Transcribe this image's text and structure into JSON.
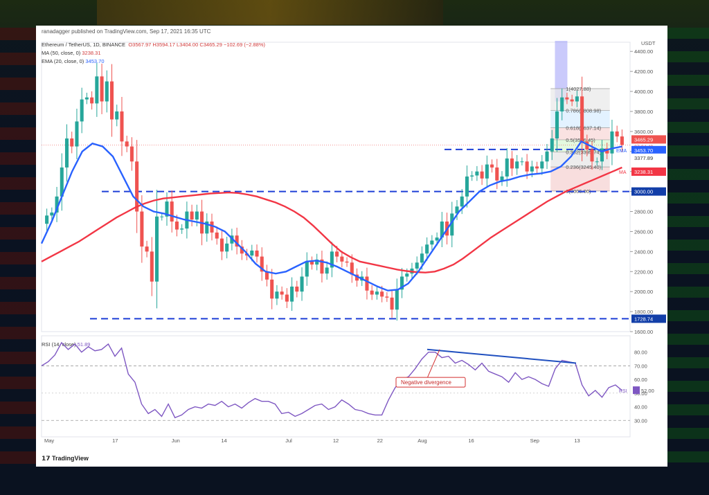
{
  "caption": "ranadagger published on TradingView.com, Sep 17, 2021 16:35 UTC",
  "legend": {
    "symbol": "Ethereum / TetherUS, 1D, BINANCE",
    "ohlc": "O3567.97  H3594.17  L3404.00  C3465.29  −102.69 (−2.88%)",
    "ma_label": "MA (50, close, 0)",
    "ma_value": "3238.31",
    "ema_label": "EMA (20, close, 0)",
    "ema_value": "3453.70"
  },
  "rsi_legend": {
    "label": "RSI (14, close)",
    "value": "51.89"
  },
  "tradingview": "TradingView",
  "colors": {
    "up": "#26a69a",
    "down": "#ef5350",
    "ema": "#2962ff",
    "ma": "#f23645",
    "rsi": "#7e57c2",
    "level": "#1e3fd6"
  },
  "chart_data": [
    {
      "type": "candlestick",
      "axis_unit": "USDT",
      "x_ticks": [
        "May",
        "17",
        "Jun",
        "14",
        "Jul",
        "12",
        "22",
        "Aug",
        "16",
        "Sep",
        "13"
      ],
      "y_ticks": [
        1600,
        1800,
        2000,
        2200,
        2400,
        2600,
        2800,
        3000,
        3200,
        3400,
        3600,
        3800,
        4000,
        4200,
        4400
      ],
      "ylim": [
        1600,
        4450
      ],
      "price_labels": {
        "last": "3465.29",
        "countdown": "07:24:49",
        "ema": "3453.70",
        "ema_tag": "EMA",
        "mid": "3377.89",
        "ma": "3238.31",
        "ma_tag": "MA",
        "level_3000": "3000.00",
        "level_1728": "1728.74"
      },
      "levels": [
        3000,
        1728.74,
        3420
      ],
      "fib_levels": [
        {
          "label": "1(4027.88)",
          "value": 4027.88
        },
        {
          "label": "0.786(3808.98)",
          "value": 3808.98
        },
        {
          "label": "0.618(3637.14)",
          "value": 3637.14
        },
        {
          "label": "0.5(3516.45)",
          "value": 3516.45
        },
        {
          "label": "0.382(3395.74)",
          "value": 3395.74
        },
        {
          "label": "0.236(3245.40)",
          "value": 3245.4
        },
        {
          "label": "0(3005.00)",
          "value": 3005.0
        }
      ],
      "closes": [
        2760,
        2790,
        2950,
        3240,
        3530,
        3450,
        3700,
        3920,
        3940,
        3880,
        4150,
        3900,
        4100,
        3720,
        3800,
        3500,
        3450,
        3300,
        2800,
        2450,
        2400,
        2100,
        2750,
        2750,
        2900,
        2700,
        2620,
        2630,
        2800,
        2720,
        2800,
        2580,
        2700,
        2590,
        2530,
        2400,
        2480,
        2560,
        2450,
        2380,
        2360,
        2410,
        2350,
        2200,
        2120,
        1930,
        2000,
        1970,
        1900,
        2050,
        2000,
        2150,
        2300,
        2270,
        2320,
        2180,
        2240,
        2400,
        2350,
        2300,
        2290,
        2170,
        2110,
        2150,
        2010,
        1970,
        2000,
        1950,
        1940,
        1820,
        2020,
        2150,
        2180,
        2230,
        2290,
        2380,
        2470,
        2510,
        2540,
        2700,
        2560,
        2780,
        2850,
        2950,
        3150,
        3160,
        3200,
        3130,
        3270,
        3240,
        3110,
        3150,
        3330,
        3230,
        3300,
        3300,
        3200,
        3250,
        3230,
        3300,
        3400,
        3530,
        3800,
        3940,
        3920,
        3900,
        3950,
        3500,
        3420,
        3300,
        3300,
        3430,
        3380,
        3600,
        3550,
        3465
      ],
      "ma50": [
        2300,
        2350,
        2400,
        2450,
        2500,
        2560,
        2620,
        2680,
        2740,
        2790,
        2840,
        2880,
        2910,
        2930,
        2940,
        2950,
        2960,
        2970,
        2980,
        2985,
        2990,
        2985,
        2970,
        2950,
        2920,
        2890,
        2850,
        2800,
        2740,
        2660,
        2570,
        2480,
        2400,
        2345,
        2300,
        2280,
        2260,
        2240,
        2220,
        2205,
        2195,
        2190,
        2200,
        2230,
        2270,
        2330,
        2400,
        2470,
        2540,
        2600,
        2660,
        2720,
        2780,
        2840,
        2900,
        2950,
        3000,
        3040,
        3080,
        3120,
        3160,
        3200,
        3240
      ],
      "ema20": [
        2480,
        2700,
        2950,
        3200,
        3400,
        3480,
        3450,
        3350,
        3150,
        2950,
        2850,
        2800,
        2780,
        2750,
        2720,
        2700,
        2680,
        2650,
        2600,
        2500,
        2400,
        2280,
        2200,
        2180,
        2200,
        2250,
        2300,
        2310,
        2290,
        2250,
        2200,
        2150,
        2100,
        2050,
        2010,
        2020,
        2080,
        2200,
        2350,
        2500,
        2650,
        2800,
        2900,
        3000,
        3060,
        3100,
        3120,
        3150,
        3170,
        3180,
        3200,
        3250,
        3350,
        3500,
        3450,
        3400,
        3430,
        3450
      ],
      "rsi": [
        70,
        73,
        78,
        87,
        82,
        86,
        80,
        84,
        81,
        82,
        86,
        77,
        83,
        64,
        58,
        42,
        35,
        38,
        33,
        42,
        32,
        34,
        38,
        40,
        39,
        42,
        41,
        44,
        40,
        42,
        39,
        43,
        46,
        44,
        44,
        42,
        35,
        36,
        33,
        35,
        38,
        41,
        42,
        38,
        40,
        45,
        42,
        38,
        37,
        35,
        34,
        34,
        45,
        54,
        60,
        62,
        68,
        75,
        80,
        80,
        76,
        77,
        72,
        74,
        71,
        67,
        72,
        66,
        64,
        62,
        58,
        65,
        60,
        62,
        60,
        57,
        55,
        68,
        74,
        73,
        72,
        56,
        48,
        52,
        47,
        54,
        56,
        52
      ]
    }
  ]
}
